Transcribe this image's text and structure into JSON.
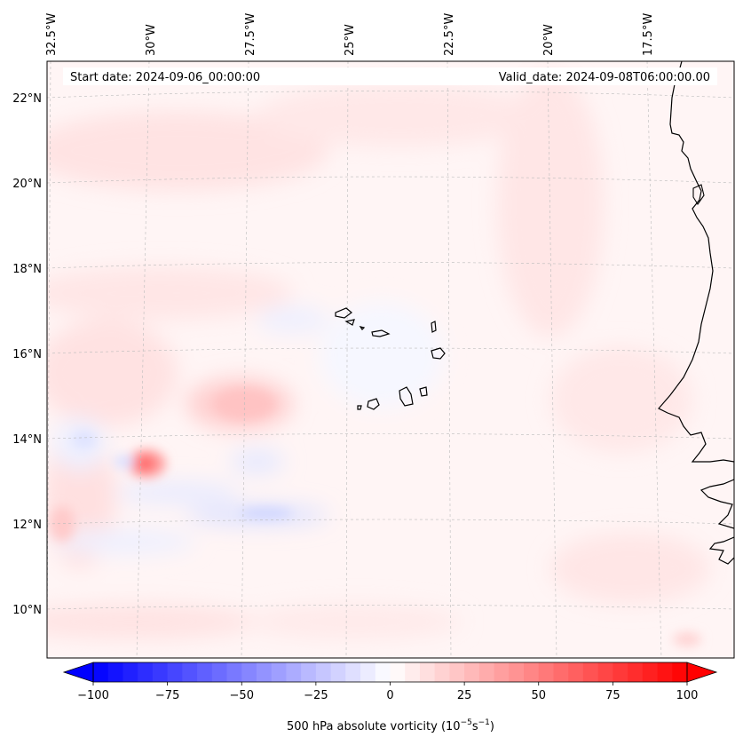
{
  "map": {
    "start_date_label": "Start date: 2024-09-06_00:00:00",
    "valid_date_label": "Valid_date: 2024-09-08T06:00:00.00",
    "extent": {
      "lon_min": -32.5,
      "lon_max": -15.8,
      "lat_min": 8.9,
      "lat_max": 22.8
    },
    "lon_ticks": [
      {
        "value": -32.5,
        "label": "32.5°W"
      },
      {
        "value": -30.0,
        "label": "30°W"
      },
      {
        "value": -27.5,
        "label": "27.5°W"
      },
      {
        "value": -25.0,
        "label": "25°W"
      },
      {
        "value": -22.5,
        "label": "22.5°W"
      },
      {
        "value": -20.0,
        "label": "20°W"
      },
      {
        "value": -17.5,
        "label": "17.5°W"
      }
    ],
    "lat_ticks": [
      {
        "value": 22,
        "label": "22°N"
      },
      {
        "value": 20,
        "label": "20°N"
      },
      {
        "value": 18,
        "label": "18°N"
      },
      {
        "value": 16,
        "label": "16°N"
      },
      {
        "value": 14,
        "label": "14°N"
      },
      {
        "value": 12,
        "label": "12°N"
      },
      {
        "value": 10,
        "label": "10°N"
      }
    ],
    "field": "500 hPa absolute vorticity",
    "gridlines": true,
    "features": [
      "Cape Verde islands",
      "West African coastline"
    ]
  },
  "colorbar": {
    "label_main": "500 hPa absolute vorticity (10",
    "label_exp1": "−5",
    "label_mid": "s",
    "label_exp2": "−1",
    "label_end": ")",
    "min": -100,
    "max": 100,
    "ticks": [
      {
        "value": -100,
        "label": "−100"
      },
      {
        "value": -75,
        "label": "−75"
      },
      {
        "value": -50,
        "label": "−50"
      },
      {
        "value": -25,
        "label": "−25"
      },
      {
        "value": 0,
        "label": "0"
      },
      {
        "value": 25,
        "label": "25"
      },
      {
        "value": 50,
        "label": "50"
      },
      {
        "value": 75,
        "label": "75"
      },
      {
        "value": 100,
        "label": "100"
      }
    ],
    "colormap": "bwr",
    "extend": "both",
    "color_low": "#0000ff",
    "color_mid": "#ffffff",
    "color_high": "#ff0000"
  }
}
